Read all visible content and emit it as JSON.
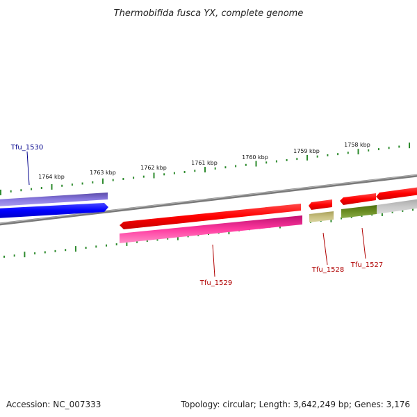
{
  "title": "Thermobifida fusca YX, complete genome",
  "footer": {
    "accession": "Accession: NC_007333",
    "summary": "Topology: circular; Length: 3,642,249 bp; Genes: 3,176"
  },
  "kbp_ticks": [
    "1764 kbp",
    "1763 kbp",
    "1762 kbp",
    "1761 kbp",
    "1760 kbp",
    "1759 kbp",
    "1758 kbp"
  ],
  "gene_labels": {
    "tfu_1530": "Tfu_1530",
    "tfu_1529": "Tfu_1529",
    "tfu_1528": "Tfu_1528",
    "tfu_1527": "Tfu_1527"
  },
  "colors": {
    "backbone": "#7a7a7a",
    "tick": "#2e8b2e",
    "tfu_1530_label": "#00008b",
    "other_labels": "#b00000",
    "gene_blue": "#0000ff",
    "gene_purple": "#6a5acd",
    "gene_red": "#ff0000",
    "gene_pink": "#ff1493",
    "gene_khaki": "#bdb76b",
    "gene_olive": "#6b8e23",
    "gene_grey": "#c0c0c0"
  }
}
